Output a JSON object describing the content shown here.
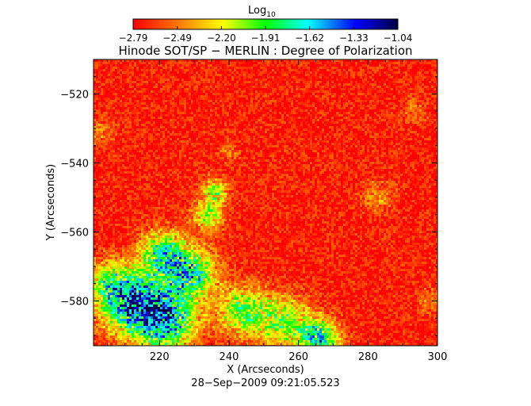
{
  "colorbar": {
    "label_base": "Log",
    "label_sub": "10",
    "ticks": [
      "−2.79",
      "−2.49",
      "−2.20",
      "−1.91",
      "−1.62",
      "−1.33",
      "−1.04"
    ],
    "range": [
      -2.79,
      -1.04
    ],
    "colors": [
      "#ff0000",
      "#ff8000",
      "#ffff00",
      "#00ff00",
      "#00ffff",
      "#0000ff",
      "#000044"
    ]
  },
  "chart_data": {
    "type": "heatmap",
    "title": "Hinode SOT/SP − MERLIN : Degree of Polarization",
    "xlabel": "X (Arcseconds)",
    "ylabel": "Y (Arcseconds)",
    "xlim": [
      201,
      300
    ],
    "ylim": [
      -593,
      -510
    ],
    "xticks": [
      220,
      240,
      260,
      280,
      300
    ],
    "xtick_labels": [
      "220",
      "240",
      "260",
      "280",
      "300"
    ],
    "yticks": [
      -520,
      -540,
      -560,
      -580
    ],
    "ytick_labels": [
      "−520",
      "−540",
      "−560",
      "−580"
    ],
    "value_scale": "log10",
    "features": [
      {
        "description": "high polarization region",
        "x": 214,
        "y": -580,
        "level": -1.2
      },
      {
        "description": "high polarization region",
        "x": 228,
        "y": -572,
        "level": -1.4
      },
      {
        "description": "high polarization filament",
        "x": 235,
        "y": -555,
        "level": -1.5
      },
      {
        "description": "high polarization region",
        "x": 266,
        "y": -590,
        "level": -1.3
      }
    ],
    "timestamp": "28−Sep−2009 09:21:05.523"
  }
}
